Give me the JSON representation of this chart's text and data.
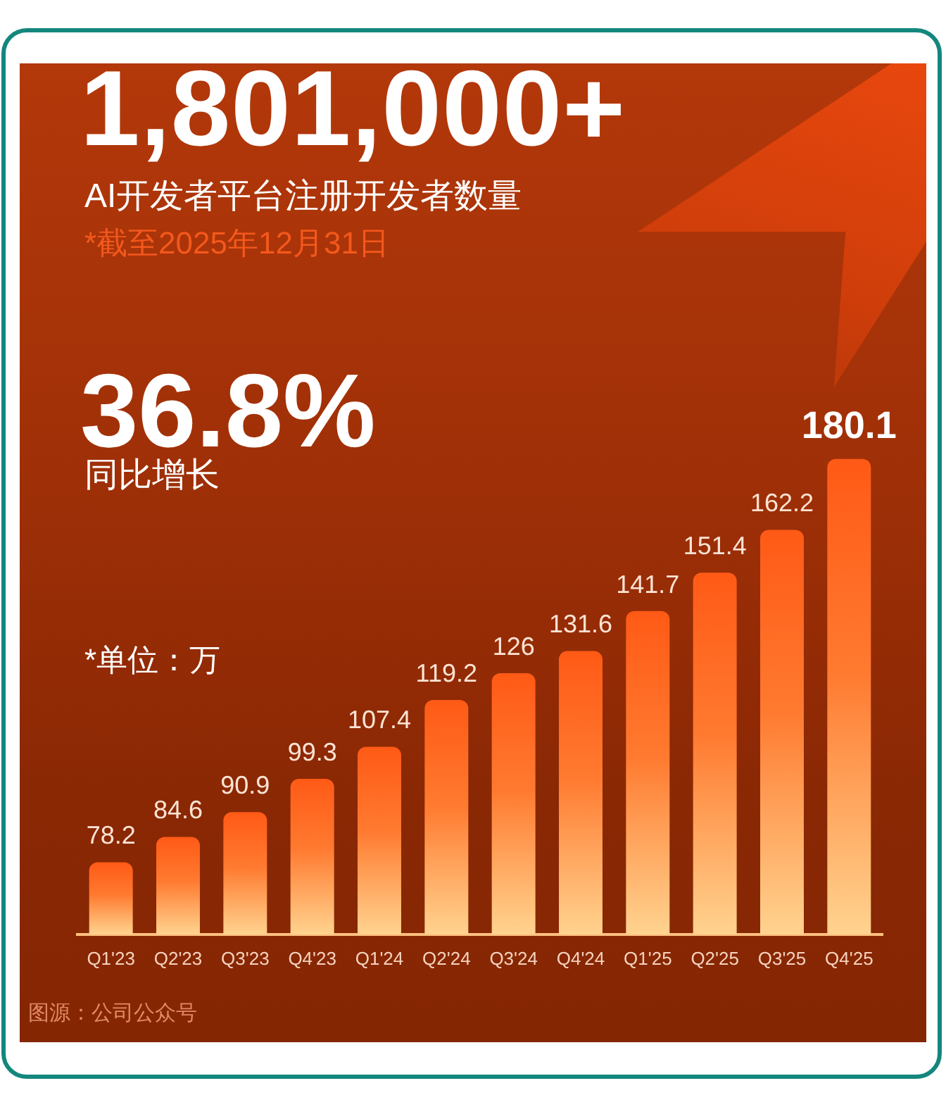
{
  "chart_data": {
    "type": "bar",
    "title": "1,801,000+",
    "subtitle": "AI开发者平台注册开发者数量",
    "annotations": [
      "*截至2025年12月31日",
      "36.8%",
      "同比增长",
      "*单位：万",
      "图源：公司公众号"
    ],
    "categories": [
      "Q1'23",
      "Q2'23",
      "Q3'23",
      "Q4'23",
      "Q1'24",
      "Q2'24",
      "Q3'24",
      "Q4'24",
      "Q1'25",
      "Q2'25",
      "Q3'25",
      "Q4'25"
    ],
    "values": [
      78.2,
      84.6,
      90.9,
      99.3,
      107.4,
      119.2,
      126,
      131.6,
      141.7,
      151.4,
      162.2,
      180.1
    ],
    "color": "#ff7a30",
    "data_labels": true,
    "tick_labels": "x"
  }
}
